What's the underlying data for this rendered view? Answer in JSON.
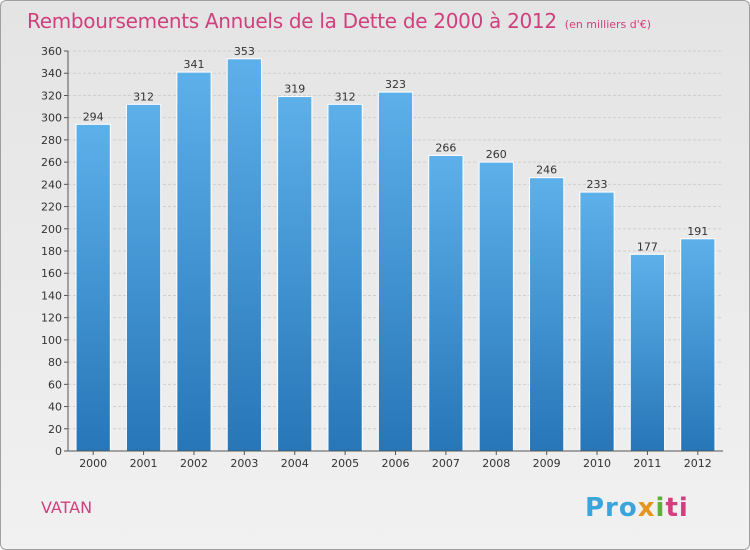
{
  "title": "Remboursements Annuels de la Dette de 2000 à 2012",
  "subtitle": "(en milliers d'€)",
  "place": "VATAN",
  "logo": {
    "p1": "Pro",
    "p2": "x",
    "p3": "i",
    "p4": "ti"
  },
  "colors": {
    "title": "#d0407e",
    "bar_top": "#5db0ea",
    "bar_bottom": "#2776b8"
  },
  "chart_data": {
    "type": "bar",
    "categories": [
      "2000",
      "2001",
      "2002",
      "2003",
      "2004",
      "2005",
      "2006",
      "2007",
      "2008",
      "2009",
      "2010",
      "2011",
      "2012"
    ],
    "values": [
      294,
      312,
      341,
      353,
      319,
      312,
      323,
      266,
      260,
      246,
      233,
      177,
      191
    ],
    "title": "Remboursements Annuels de la Dette de 2000 à 2012",
    "ylabel": "",
    "xlabel": "",
    "ylim": [
      0,
      360
    ],
    "yticks": [
      0,
      20,
      40,
      60,
      80,
      100,
      120,
      140,
      160,
      180,
      200,
      220,
      240,
      260,
      280,
      300,
      320,
      340,
      360
    ],
    "grid": true
  }
}
